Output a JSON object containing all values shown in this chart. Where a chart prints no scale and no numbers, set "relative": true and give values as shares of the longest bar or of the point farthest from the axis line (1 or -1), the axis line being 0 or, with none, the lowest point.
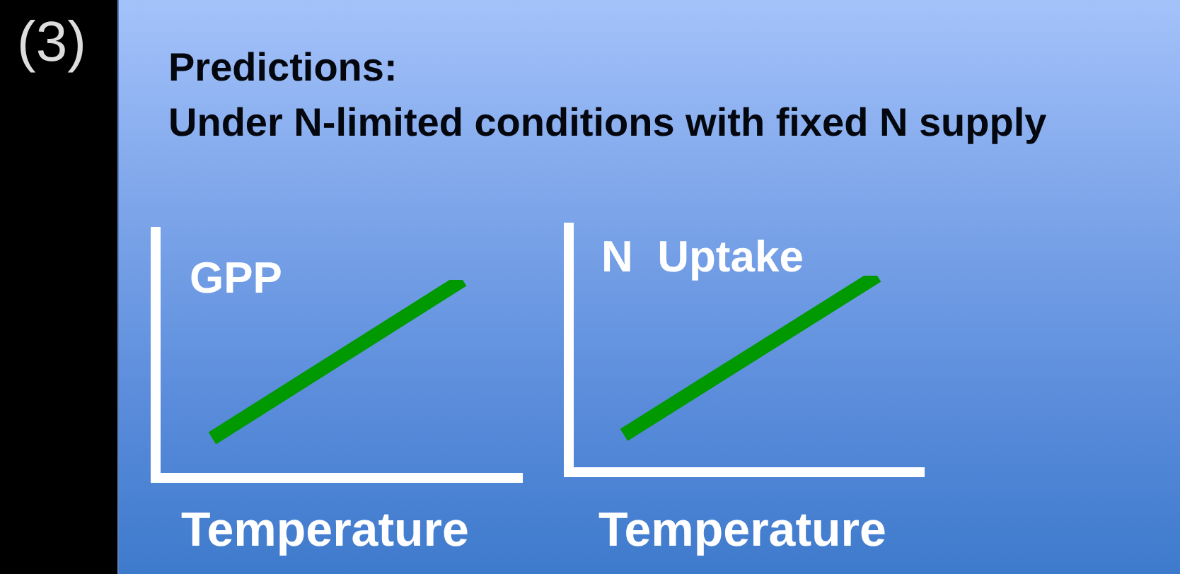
{
  "chart_data": [
    {
      "type": "line",
      "title": "Predictions:",
      "subtitle": "Under N-limited conditions with fixed N supply",
      "annotations": [
        "(3)"
      ],
      "xlabel": "Temperature",
      "ylabel": "GPP",
      "relative": true,
      "categories": [
        null,
        null
      ],
      "series": [
        {
          "color": "#009900",
          "values": [
            0.2,
            1
          ]
        }
      ]
    },
    {
      "type": "line",
      "xlabel": "Temperature",
      "ylabel": "N  Uptake",
      "relative": true,
      "categories": [
        null,
        null
      ],
      "series": [
        {
          "color": "#009900",
          "values": [
            0.19,
            1
          ]
        }
      ]
    }
  ]
}
